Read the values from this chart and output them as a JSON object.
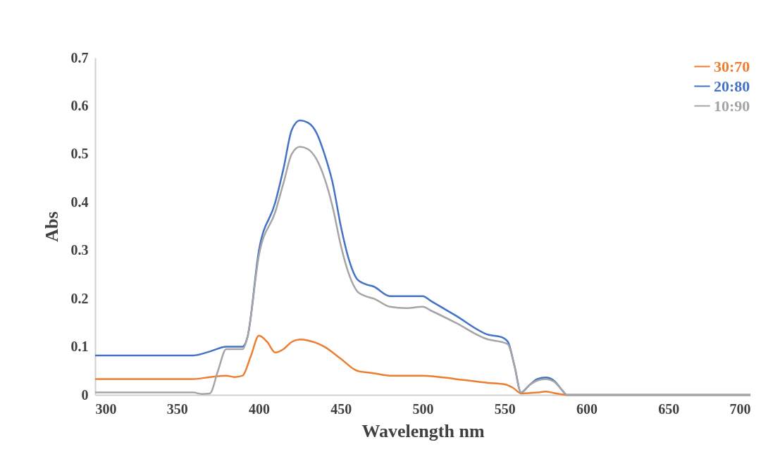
{
  "chart_data": {
    "type": "line",
    "xlabel": "Wavelength nm",
    "ylabel": "Abs",
    "xlim": [
      300,
      700
    ],
    "xticks": [
      300,
      350,
      400,
      450,
      500,
      550,
      600,
      650,
      700
    ],
    "ylim": [
      0,
      0.7
    ],
    "yticks": [
      0,
      0.1,
      0.2,
      0.3,
      0.4,
      0.5,
      0.6,
      0.7
    ],
    "grid": false,
    "legend": "top right",
    "marker": "none",
    "line_style": "solid",
    "series": [
      {
        "name": "30:70",
        "color": "#ed7d31",
        "x": [
          300,
          360,
          370,
          380,
          385,
          390,
          395,
          400,
          405,
          410,
          415,
          420,
          425,
          430,
          440,
          450,
          460,
          470,
          480,
          500,
          520,
          540,
          550,
          555,
          560,
          570,
          575,
          580,
          588,
          700
        ],
        "values": [
          0.033,
          0.033,
          0.037,
          0.04,
          0.037,
          0.04,
          0.08,
          0.123,
          0.11,
          0.088,
          0.095,
          0.11,
          0.115,
          0.113,
          0.1,
          0.075,
          0.05,
          0.045,
          0.04,
          0.04,
          0.033,
          0.025,
          0.022,
          0.015,
          0.003,
          0.005,
          0.007,
          0.004,
          0,
          0
        ]
      },
      {
        "name": "20:80",
        "color": "#4472c4",
        "x": [
          300,
          360,
          370,
          380,
          390,
          393,
          400,
          410,
          415,
          420,
          425,
          430,
          435,
          440,
          445,
          450,
          455,
          460,
          465,
          470,
          480,
          490,
          500,
          505,
          520,
          540,
          548,
          552,
          556,
          560,
          565,
          570,
          575,
          580,
          585,
          588,
          700
        ],
        "values": [
          0.082,
          0.082,
          0.09,
          0.1,
          0.1,
          0.12,
          0.3,
          0.4,
          0.47,
          0.55,
          0.57,
          0.565,
          0.545,
          0.5,
          0.44,
          0.35,
          0.28,
          0.24,
          0.23,
          0.225,
          0.205,
          0.205,
          0.205,
          0.195,
          0.165,
          0.125,
          0.12,
          0.11,
          0.06,
          0.005,
          0.02,
          0.033,
          0.036,
          0.03,
          0.01,
          0,
          0
        ]
      },
      {
        "name": "10:90",
        "color": "#a5a5a5",
        "x": [
          300,
          360,
          365,
          370,
          375,
          380,
          390,
          393,
          400,
          410,
          415,
          420,
          425,
          430,
          435,
          440,
          445,
          450,
          455,
          460,
          465,
          470,
          480,
          490,
          500,
          505,
          520,
          540,
          548,
          552,
          556,
          560,
          565,
          570,
          575,
          580,
          585,
          588,
          700
        ],
        "values": [
          0.005,
          0.005,
          0.002,
          0.003,
          0.05,
          0.095,
          0.095,
          0.12,
          0.29,
          0.38,
          0.44,
          0.5,
          0.515,
          0.51,
          0.49,
          0.45,
          0.39,
          0.31,
          0.25,
          0.215,
          0.205,
          0.2,
          0.183,
          0.18,
          0.183,
          0.175,
          0.15,
          0.115,
          0.11,
          0.105,
          0.06,
          0.005,
          0.02,
          0.03,
          0.033,
          0.028,
          0.01,
          0,
          0
        ]
      }
    ]
  }
}
